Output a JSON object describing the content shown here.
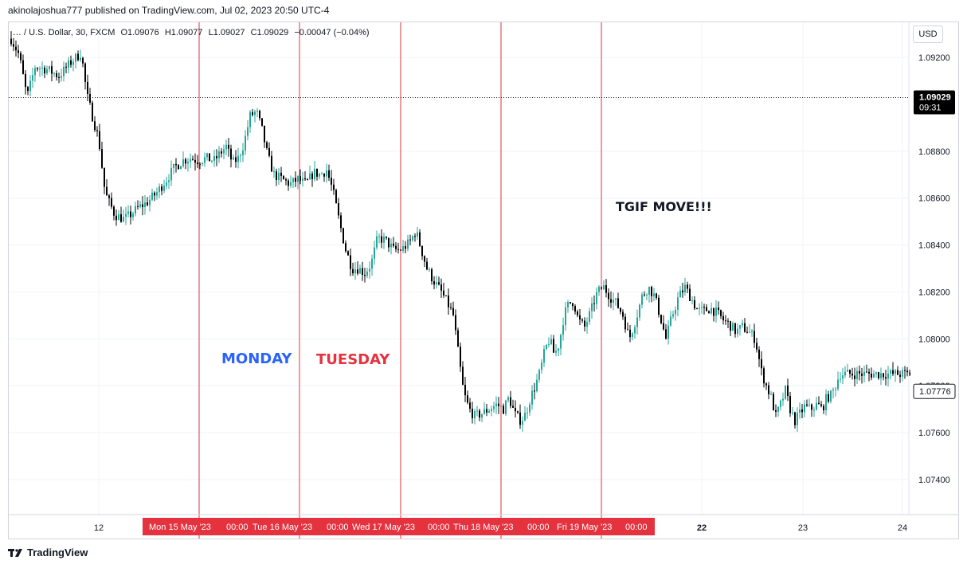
{
  "publisher": "akinolajoshua777 published on TradingView.com, Jul 02, 2023 20:50 UTC-4",
  "footer": {
    "brand": "TradingView",
    "logo_icon": "tradingview-logo-icon"
  },
  "legend": {
    "symbol": "… / U.S. Dollar, 30, FXCM",
    "open": "O1.09076",
    "high": "H1.09077",
    "low": "L1.09027",
    "close": "C1.09029",
    "change": "−0.00047 (−0.04%)"
  },
  "currency": "USD",
  "colors": {
    "up": "#26a69a",
    "down": "#000000",
    "separator": "#e5323f",
    "monday": "#2962ff",
    "tuesday": "#e5323f",
    "price_tag": "#000000",
    "grid": "#f0f3fa"
  },
  "annotations": {
    "monday": "MONDAY",
    "tuesday": "TUESDAY",
    "tgif": "TGIF MOVE!!!"
  },
  "chart_data": {
    "type": "candlestick",
    "ylim": [
      1.0725,
      1.0935
    ],
    "y_ticks": [
      "1.09200",
      "1.08800",
      "1.08600",
      "1.08400",
      "1.08200",
      "1.08000",
      "1.07800",
      "1.07600",
      "1.07400"
    ],
    "price_tags": [
      {
        "value": "1.09029",
        "sub": "09:31",
        "price": 1.09029
      },
      {
        "value": "1.07776",
        "price": 1.07776
      }
    ],
    "x_ticks_plain": [
      "12",
      "22",
      "23",
      "24"
    ],
    "x_ticks_highlight": [
      "Mon 15 May '23",
      "00:00",
      "Tue 16 May '23",
      "00:00",
      "Wed 17 May '23",
      "00:00",
      "Thu 18 May '23",
      "00:00",
      "Fri 19 May '23",
      "00:00"
    ],
    "session_separators": [
      "Mon 15 May '23",
      "Tue 16 May '23",
      "Wed 17 May '23",
      "Thu 18 May '23",
      "Fri 19 May '23"
    ],
    "price_path": [
      [
        0,
        1.0928
      ],
      [
        10,
        1.0921
      ],
      [
        20,
        1.0903
      ],
      [
        30,
        1.0916
      ],
      [
        45,
        1.0915
      ],
      [
        60,
        1.0912
      ],
      [
        75,
        1.0918
      ],
      [
        88,
        1.0922
      ],
      [
        95,
        1.0904
      ],
      [
        102,
        1.0895
      ],
      [
        110,
        1.0885
      ],
      [
        118,
        1.0862
      ],
      [
        130,
        1.0853
      ],
      [
        142,
        1.0851
      ],
      [
        150,
        1.0853
      ],
      [
        160,
        1.0856
      ],
      [
        170,
        1.0858
      ],
      [
        182,
        1.0862
      ],
      [
        195,
        1.0868
      ],
      [
        205,
        1.0873
      ],
      [
        215,
        1.0876
      ],
      [
        225,
        1.0877
      ],
      [
        235,
        1.0876
      ],
      [
        245,
        1.0877
      ],
      [
        255,
        1.0876
      ],
      [
        262,
        1.0879
      ],
      [
        270,
        1.0882
      ],
      [
        278,
        1.0875
      ],
      [
        285,
        1.0877
      ],
      [
        292,
        1.0883
      ],
      [
        300,
        1.0895
      ],
      [
        308,
        1.0897
      ],
      [
        315,
        1.0889
      ],
      [
        322,
        1.0878
      ],
      [
        330,
        1.087
      ],
      [
        340,
        1.0868
      ],
      [
        350,
        1.0866
      ],
      [
        360,
        1.0868
      ],
      [
        370,
        1.0866
      ],
      [
        380,
        1.0871
      ],
      [
        388,
        1.087
      ],
      [
        396,
        1.0872
      ],
      [
        404,
        1.0863
      ],
      [
        412,
        1.085
      ],
      [
        420,
        1.0838
      ],
      [
        428,
        1.083
      ],
      [
        436,
        1.083
      ],
      [
        444,
        1.0828
      ],
      [
        452,
        1.0832
      ],
      [
        460,
        1.0843
      ],
      [
        470,
        1.0842
      ],
      [
        480,
        1.0838
      ],
      [
        490,
        1.0838
      ],
      [
        500,
        1.0841
      ],
      [
        508,
        1.0846
      ],
      [
        515,
        1.0838
      ],
      [
        522,
        1.083
      ],
      [
        530,
        1.0825
      ],
      [
        540,
        1.082
      ],
      [
        548,
        1.0815
      ],
      [
        555,
        1.081
      ],
      [
        562,
        1.0792
      ],
      [
        568,
        1.0777
      ],
      [
        575,
        1.077
      ],
      [
        582,
        1.0767
      ],
      [
        590,
        1.0768
      ],
      [
        600,
        1.077
      ],
      [
        610,
        1.0772
      ],
      [
        618,
        1.077
      ],
      [
        625,
        1.0775
      ],
      [
        632,
        1.0768
      ],
      [
        640,
        1.0765
      ],
      [
        646,
        1.0768
      ],
      [
        652,
        1.0775
      ],
      [
        658,
        1.078
      ],
      [
        664,
        1.0786
      ],
      [
        670,
        1.0795
      ],
      [
        676,
        1.08
      ],
      [
        682,
        1.0793
      ],
      [
        688,
        1.0798
      ],
      [
        694,
        1.081
      ],
      [
        700,
        1.0815
      ],
      [
        706,
        1.0816
      ],
      [
        712,
        1.0808
      ],
      [
        720,
        1.0805
      ],
      [
        728,
        1.0812
      ],
      [
        736,
        1.082
      ],
      [
        744,
        1.0822
      ],
      [
        752,
        1.0818
      ],
      [
        760,
        1.0815
      ],
      [
        768,
        1.081
      ],
      [
        776,
        1.08
      ],
      [
        784,
        1.0808
      ],
      [
        792,
        1.0818
      ],
      [
        800,
        1.0822
      ],
      [
        808,
        1.0818
      ],
      [
        816,
        1.0808
      ],
      [
        822,
        1.08
      ],
      [
        830,
        1.081
      ],
      [
        838,
        1.0818
      ],
      [
        846,
        1.0822
      ],
      [
        854,
        1.0817
      ],
      [
        862,
        1.0812
      ],
      [
        870,
        1.0812
      ],
      [
        878,
        1.0813
      ],
      [
        886,
        1.0811
      ],
      [
        894,
        1.0808
      ],
      [
        902,
        1.0806
      ],
      [
        910,
        1.0803
      ],
      [
        918,
        1.0805
      ],
      [
        926,
        1.0803
      ],
      [
        934,
        1.08
      ],
      [
        942,
        1.0786
      ],
      [
        948,
        1.078
      ],
      [
        954,
        1.0775
      ],
      [
        960,
        1.0767
      ],
      [
        966,
        1.0772
      ],
      [
        972,
        1.0778
      ],
      [
        978,
        1.077
      ],
      [
        984,
        1.0765
      ],
      [
        990,
        1.0768
      ],
      [
        996,
        1.0771
      ],
      [
        1004,
        1.077
      ],
      [
        1012,
        1.0772
      ],
      [
        1018,
        1.077
      ],
      [
        1024,
        1.0775
      ],
      [
        1030,
        1.0776
      ],
      [
        1036,
        1.0781
      ],
      [
        1040,
        1.0785
      ]
    ]
  }
}
